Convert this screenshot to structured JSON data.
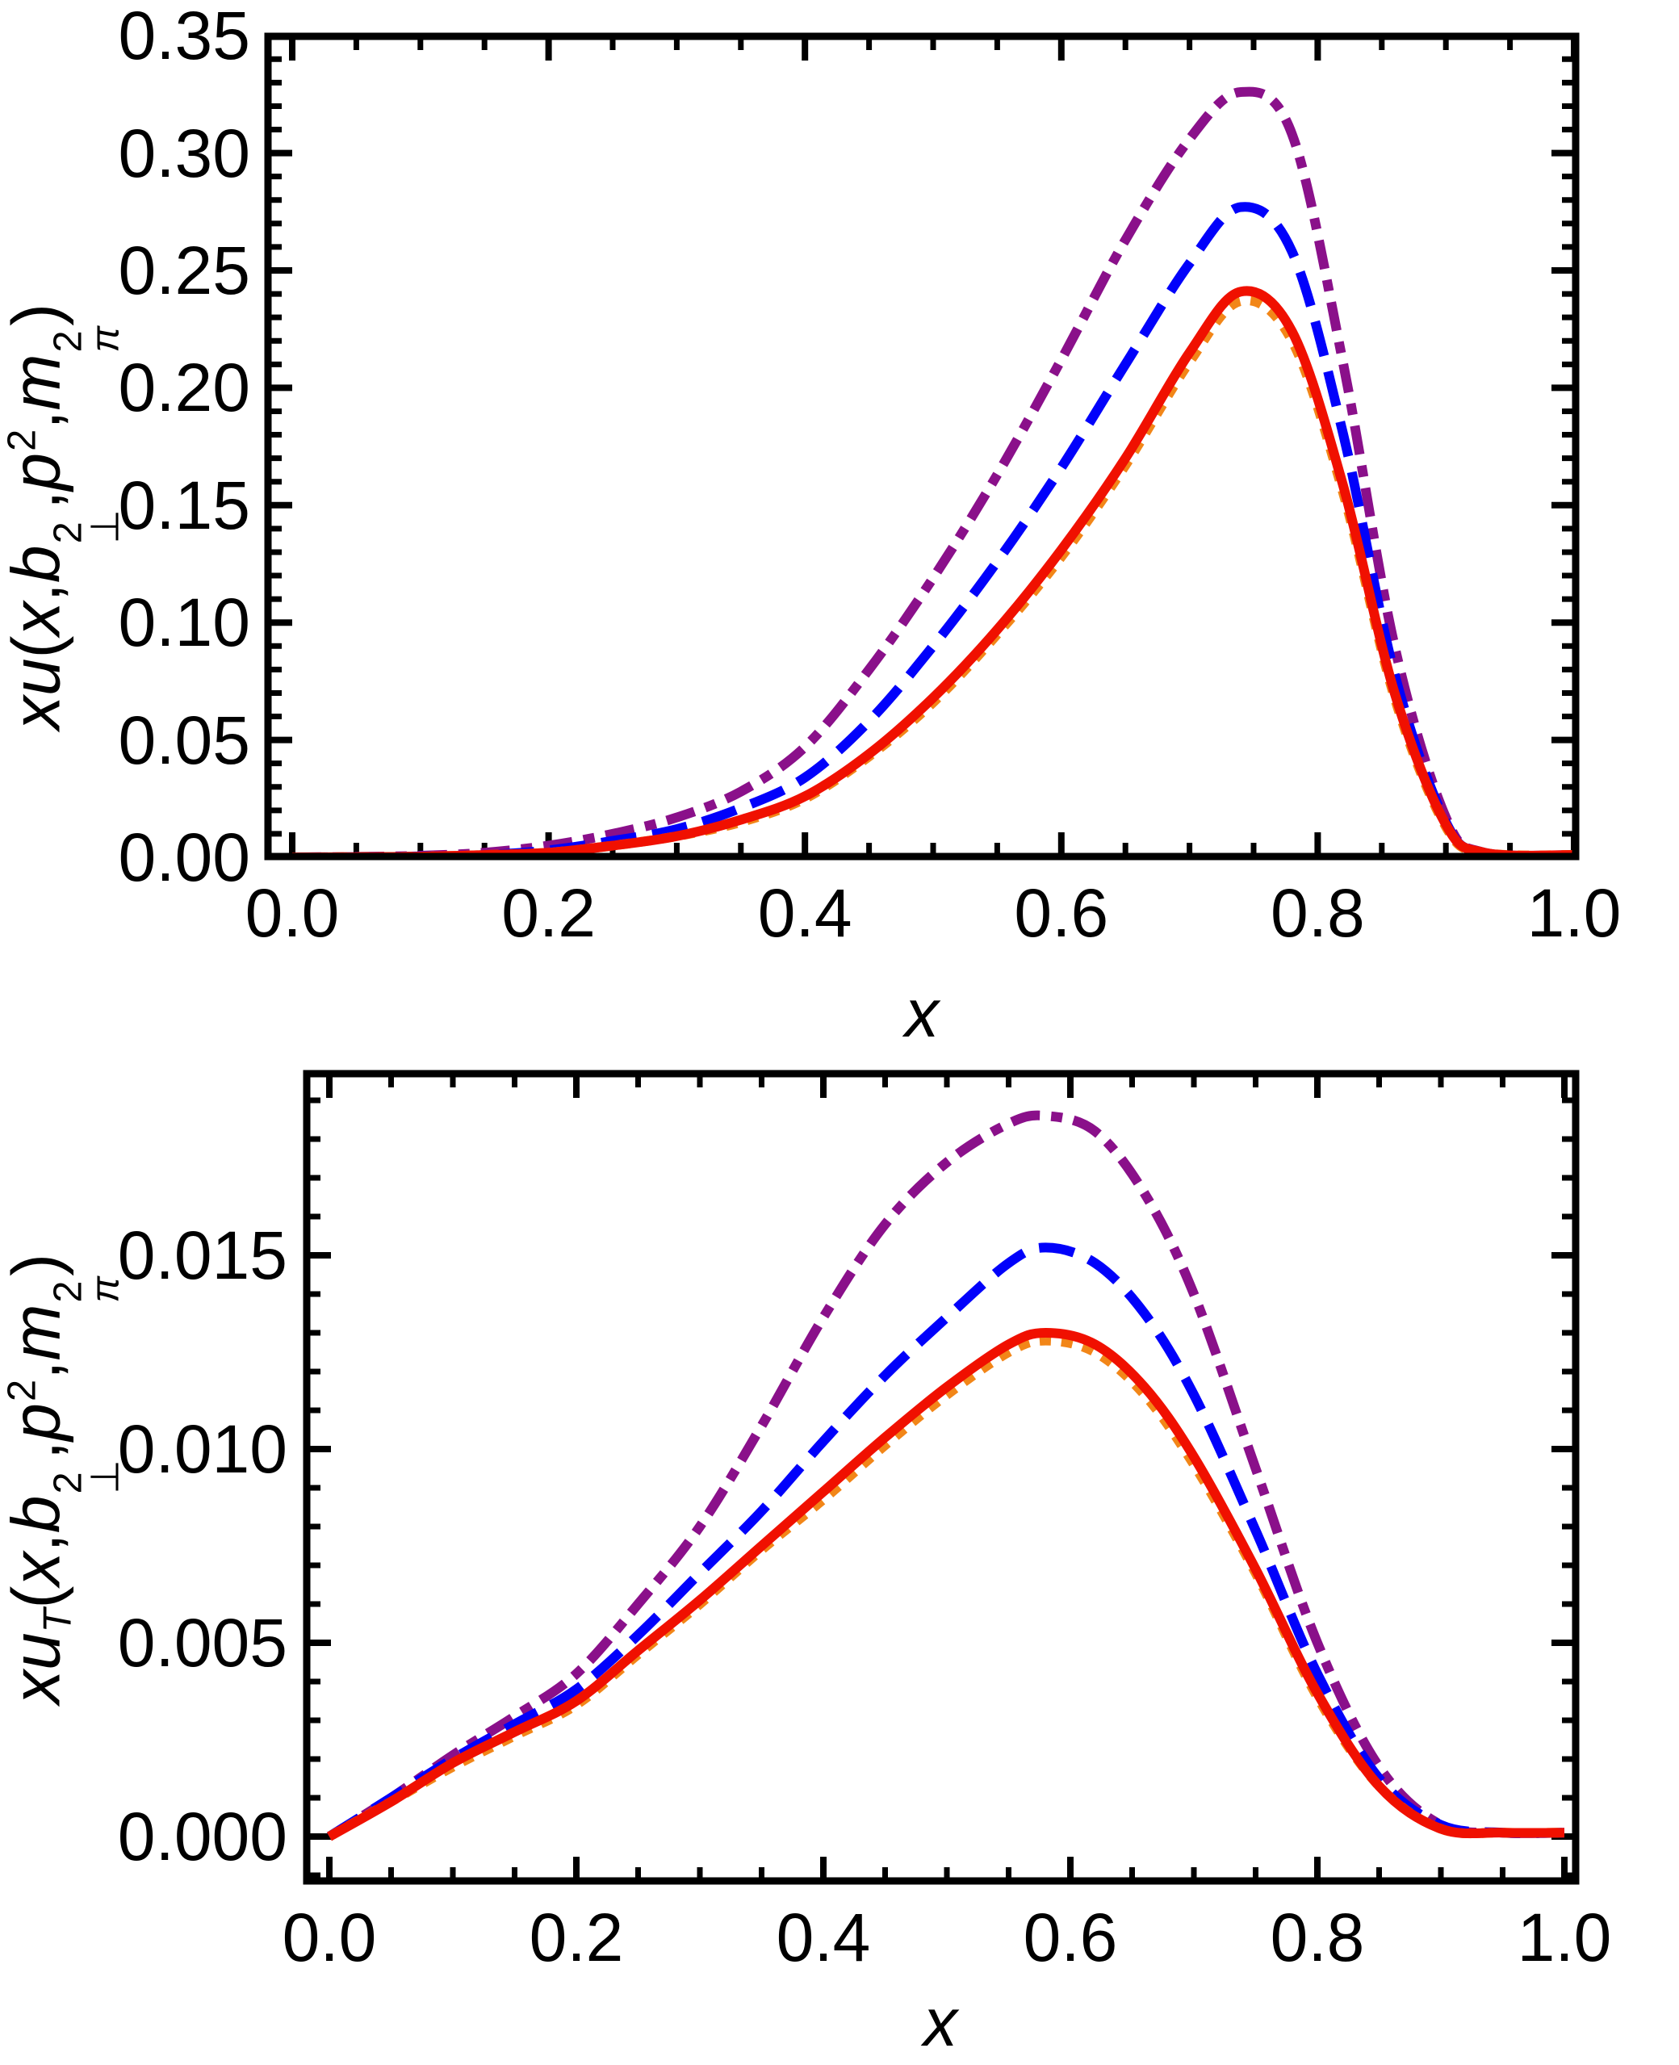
{
  "figure": {
    "background": "#FFFFFF",
    "axis_color": "#000000"
  },
  "chart_data": [
    {
      "type": "line",
      "title": "",
      "xlabel": "x",
      "ylabel": "xu(x,b⊥²,p²,mπ²)",
      "ylabel_parts": {
        "f": "xu",
        "fsub": "",
        "o": "(",
        "x": "x",
        "c1": ",",
        "b": "b",
        "bsup": "2",
        "bsub": "⊥",
        "c2": ",",
        "p": "p",
        "psup": "2",
        "c3": ",",
        "m": "m",
        "msup": "2",
        "msub": "π",
        "c": ")"
      },
      "xlim": [
        -0.019,
        1.001
      ],
      "ylim": [
        0.0,
        0.35
      ],
      "grid": false,
      "legend": null,
      "xticks": {
        "values": [
          0.0,
          0.2,
          0.4,
          0.6,
          0.8,
          1.0
        ],
        "labels": [
          "0.0",
          "0.2",
          "0.4",
          "0.6",
          "0.8",
          "1.0"
        ],
        "minor_step": 0.05
      },
      "yticks": {
        "values": [
          0.0,
          0.05,
          0.1,
          0.15,
          0.2,
          0.25,
          0.3,
          0.35
        ],
        "labels": [
          "0.00",
          "0.05",
          "0.10",
          "0.15",
          "0.20",
          "0.25",
          "0.30",
          "0.35"
        ],
        "minor_step": 0.01
      },
      "x": [
        0,
        0.05,
        0.1,
        0.15,
        0.2,
        0.25,
        0.3,
        0.35,
        0.4,
        0.45,
        0.5,
        0.55,
        0.6,
        0.65,
        0.7,
        0.74,
        0.78,
        0.82,
        0.86,
        0.9,
        0.93,
        1.0
      ],
      "series": [
        {
          "name": "dash-dotted purple",
          "color": "#8A108A",
          "style": "dashdot",
          "values": [
            0,
            0.0002,
            0.0007,
            0.002,
            0.005,
            0.01,
            0.017,
            0.028,
            0.047,
            0.08,
            0.119,
            0.163,
            0.212,
            0.263,
            0.306,
            0.326,
            0.308,
            0.21,
            0.09,
            0.017,
            0.002,
            0.001
          ]
        },
        {
          "name": "dashed blue",
          "color": "#0101FB",
          "style": "dashed",
          "values": [
            0,
            0.0001,
            0.0004,
            0.001,
            0.003,
            0.007,
            0.012,
            0.021,
            0.034,
            0.058,
            0.09,
            0.126,
            0.166,
            0.21,
            0.253,
            0.277,
            0.258,
            0.18,
            0.078,
            0.015,
            0.002,
            0.001
          ]
        },
        {
          "name": "dotted orange",
          "color": "#F28618",
          "style": "dotted",
          "values": [
            0,
            0.0001,
            0.0003,
            0.001,
            0.002,
            0.005,
            0.009,
            0.015,
            0.025,
            0.043,
            0.066,
            0.095,
            0.128,
            0.167,
            0.211,
            0.237,
            0.22,
            0.155,
            0.068,
            0.013,
            0.002,
            0.001
          ]
        },
        {
          "name": "solid red",
          "color": "#F01000",
          "style": "solid",
          "values": [
            0,
            0.0001,
            0.0003,
            0.001,
            0.002,
            0.005,
            0.009,
            0.016,
            0.026,
            0.044,
            0.068,
            0.097,
            0.131,
            0.17,
            0.215,
            0.241,
            0.224,
            0.158,
            0.07,
            0.014,
            0.002,
            0.001
          ]
        }
      ]
    },
    {
      "type": "line",
      "title": "",
      "xlabel": "x",
      "ylabel": "xuT(x,b⊥²,p²,mπ²)",
      "ylabel_parts": {
        "f": "xu",
        "fsub": "T",
        "o": "(",
        "x": "x",
        "c1": ",",
        "b": "b",
        "bsup": "2",
        "bsub": "⊥",
        "c2": ",",
        "p": "p",
        "psup": "2",
        "c3": ",",
        "m": "m",
        "msup": "2",
        "msub": "π",
        "c": ")"
      },
      "xlim": [
        -0.018,
        1.009
      ],
      "ylim": [
        -0.0012,
        0.0197
      ],
      "grid": false,
      "legend": null,
      "xticks": {
        "values": [
          0.0,
          0.2,
          0.4,
          0.6,
          0.8,
          1.0
        ],
        "labels": [
          "0.0",
          "0.2",
          "0.4",
          "0.6",
          "0.8",
          "1.0"
        ],
        "minor_step": 0.05
      },
      "yticks": {
        "values": [
          0.0,
          0.005,
          0.01,
          0.015
        ],
        "labels": [
          "0.000",
          "0.005",
          "0.010",
          "0.015"
        ],
        "minor_step": 0.001
      },
      "x": [
        0,
        0.05,
        0.1,
        0.15,
        0.2,
        0.25,
        0.3,
        0.35,
        0.4,
        0.45,
        0.5,
        0.55,
        0.58,
        0.62,
        0.66,
        0.7,
        0.75,
        0.8,
        0.85,
        0.9,
        0.95,
        1.0
      ],
      "series": [
        {
          "name": "dash-dotted purple",
          "color": "#8A108A",
          "style": "dashdot",
          "values": [
            0,
            0.001,
            0.0021,
            0.0031,
            0.0042,
            0.006,
            0.008,
            0.0106,
            0.0134,
            0.0158,
            0.0174,
            0.0184,
            0.0186,
            0.0182,
            0.0166,
            0.014,
            0.0095,
            0.005,
            0.0018,
            0.0003,
            0.0001,
            0.0001
          ]
        },
        {
          "name": "dashed blue",
          "color": "#0101FB",
          "style": "dashed",
          "values": [
            0,
            0.001,
            0.002,
            0.0029,
            0.0038,
            0.0052,
            0.0068,
            0.0084,
            0.0102,
            0.0119,
            0.0134,
            0.0148,
            0.0152,
            0.0148,
            0.0135,
            0.0114,
            0.0079,
            0.0042,
            0.0015,
            0.0003,
            0.0001,
            0.0001
          ]
        },
        {
          "name": "dotted orange",
          "color": "#F28618",
          "style": "dotted",
          "values": [
            0,
            0.0009,
            0.0018,
            0.0026,
            0.0034,
            0.0047,
            0.006,
            0.0074,
            0.0087,
            0.0101,
            0.0114,
            0.0125,
            0.0128,
            0.0125,
            0.0114,
            0.0096,
            0.0068,
            0.0036,
            0.0013,
            0.0002,
            0.0001,
            0.0001
          ]
        },
        {
          "name": "solid red",
          "color": "#F01000",
          "style": "solid",
          "values": [
            0,
            0.0009,
            0.0019,
            0.0027,
            0.0035,
            0.0048,
            0.0061,
            0.0075,
            0.0089,
            0.0103,
            0.0116,
            0.0127,
            0.013,
            0.0127,
            0.0116,
            0.0098,
            0.0069,
            0.0037,
            0.0013,
            0.0002,
            0.0001,
            0.0001
          ]
        }
      ]
    }
  ]
}
